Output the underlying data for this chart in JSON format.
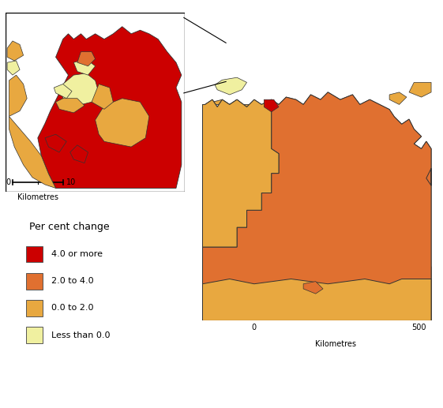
{
  "colors": {
    "4_or_more": "#cc0000",
    "2_to_4": "#e07030",
    "0_to_2": "#e8a840",
    "less_than_0": "#f0f0a0",
    "border": "#333333",
    "background": "#ffffff"
  },
  "legend": {
    "title": "Per cent change",
    "items": [
      {
        "label": "4.0 or more",
        "color": "#cc0000"
      },
      {
        "label": "2.0 to 4.0",
        "color": "#e07030"
      },
      {
        "label": "0.0 to 2.0",
        "color": "#e8a840"
      },
      {
        "label": "Less than 0.0",
        "color": "#f0f0a0"
      }
    ]
  }
}
